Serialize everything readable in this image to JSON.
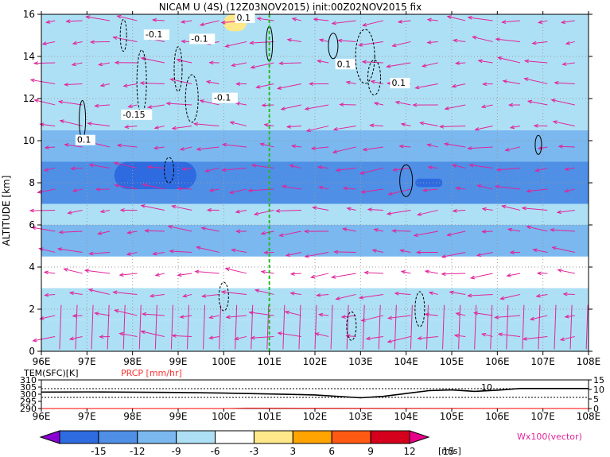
{
  "title": "NICAM U (4S) (12Z03NOV2015) init:00Z02NOV2015 fix",
  "colors": {
    "vector": "#e0249a",
    "marker_line": "#22bb22",
    "prcp_line": "#ff3333",
    "contour": "#000000"
  },
  "main_panel": {
    "ylabel": "ALTITUDE [km]",
    "x_ticks": [
      "96E",
      "97E",
      "98E",
      "99E",
      "100E",
      "101E",
      "102E",
      "103E",
      "104E",
      "105E",
      "106E",
      "107E",
      "108E"
    ],
    "y_ticks": [
      "0",
      "2",
      "4",
      "6",
      "8",
      "10",
      "12",
      "14",
      "16"
    ],
    "contour_labels": [
      "-0.1",
      "-0.1",
      "0.1",
      "-0.15",
      "-0.1",
      "0.1",
      "0.1",
      "0.1"
    ]
  },
  "sub_panel": {
    "label_tem": "TEM(SFC)[K]",
    "label_prcp": "PRCP [mm/hr]",
    "left_ticks": [
      "310",
      "305",
      "300",
      "295",
      "290"
    ],
    "right_ticks": [
      "15",
      "10",
      "5",
      "0"
    ],
    "x_ticks": [
      "96E",
      "97E",
      "98E",
      "99E",
      "100E",
      "101E",
      "102E",
      "103E",
      "104E",
      "105E",
      "106E",
      "107E",
      "108E"
    ],
    "annotation": "10"
  },
  "colorbar": {
    "labels": [
      "-15",
      "-12",
      "-9",
      "-6",
      "-3",
      "3",
      "6",
      "9",
      "12",
      "15"
    ],
    "colors": [
      "#8a00d4",
      "#2e6be0",
      "#4f8fe6",
      "#7ab8ef",
      "#aee0f5",
      "#ffffff",
      "#ffe88a",
      "#ffa400",
      "#ff5a14",
      "#d4001c",
      "#e8008a"
    ],
    "units": "[m/s]",
    "vector_label": "Wx100(vector)"
  },
  "chart_data": {
    "type": "heatmap",
    "title": "NICAM U (4S) (12Z03NOV2015) init:00Z02NOV2015 fix",
    "xlabel": "",
    "ylabel": "ALTITUDE [km]",
    "xlim": [
      96,
      108
    ],
    "ylim": [
      0,
      16
    ],
    "x_unit": "degrees E",
    "marker_longitude": 101,
    "u_wind_bands": [
      {
        "z_min": 0.0,
        "z_max": 1.5,
        "u": -4
      },
      {
        "z_min": 1.5,
        "z_max": 3.0,
        "u": -5
      },
      {
        "z_min": 3.0,
        "z_max": 4.5,
        "u": -3
      },
      {
        "z_min": 4.5,
        "z_max": 6.0,
        "u": -9
      },
      {
        "z_min": 6.0,
        "z_max": 7.0,
        "u": -5
      },
      {
        "z_min": 7.0,
        "z_max": 9.0,
        "u": -11
      },
      {
        "z_min": 9.0,
        "z_max": 10.5,
        "u": -7
      },
      {
        "z_min": 10.5,
        "z_max": 13.0,
        "u": -5
      },
      {
        "z_min": 13.0,
        "z_max": 16.0,
        "u": -4
      }
    ],
    "u_wind_max_regions": [
      {
        "lon_range": [
          97.6,
          99.4
        ],
        "z_range": [
          7.7,
          9.0
        ],
        "u": -15
      },
      {
        "lon_range": [
          104.2,
          104.8
        ],
        "z_range": [
          7.8,
          8.2
        ],
        "u": -15
      },
      {
        "lon_range": [
          100.0,
          100.5
        ],
        "z_range": [
          15.2,
          16.0
        ],
        "u": 4
      }
    ],
    "surface_temperature": {
      "unit": "K",
      "ylim": [
        290,
        310
      ],
      "lon": [
        96,
        97,
        98,
        99,
        100,
        101,
        102,
        103,
        103.5,
        104,
        104.5,
        105,
        105.5,
        106,
        106.5,
        107,
        108
      ],
      "values": [
        301.5,
        301.6,
        301.4,
        301.2,
        300.8,
        300.2,
        299.5,
        297.5,
        298.5,
        300.5,
        302.5,
        303,
        302,
        302.8,
        304,
        304,
        304
      ]
    },
    "precipitation": {
      "unit": "mm/hr",
      "ylim": [
        0,
        15
      ],
      "lon": [
        96,
        100,
        100.5,
        108
      ],
      "values": [
        0,
        0,
        0.2,
        0
      ]
    }
  }
}
